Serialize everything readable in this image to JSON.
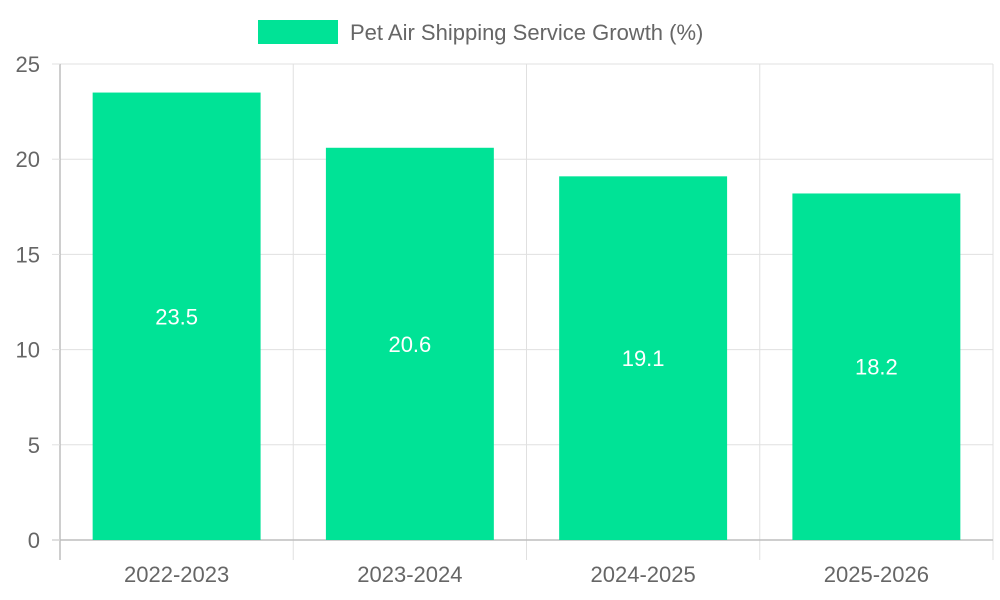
{
  "chart_data": {
    "type": "bar",
    "categories": [
      "2022-2023",
      "2023-2024",
      "2024-2025",
      "2025-2026"
    ],
    "series": [
      {
        "name": "Pet Air Shipping Service Growth (%)",
        "values": [
          23.5,
          20.6,
          19.1,
          18.2
        ]
      }
    ],
    "data_labels": [
      "23.5",
      "20.6",
      "19.1",
      "18.2"
    ],
    "y_ticks": [
      "0",
      "5",
      "10",
      "15",
      "20",
      "25"
    ],
    "ylim": [
      0,
      25
    ],
    "y_step": 5,
    "grid": true,
    "legend_position": "top",
    "colors": {
      "bar": "#00e396",
      "grid": "#e0e0e0",
      "axis": "#bdbdbd",
      "text": "#666666",
      "label": "#ffffff"
    }
  }
}
